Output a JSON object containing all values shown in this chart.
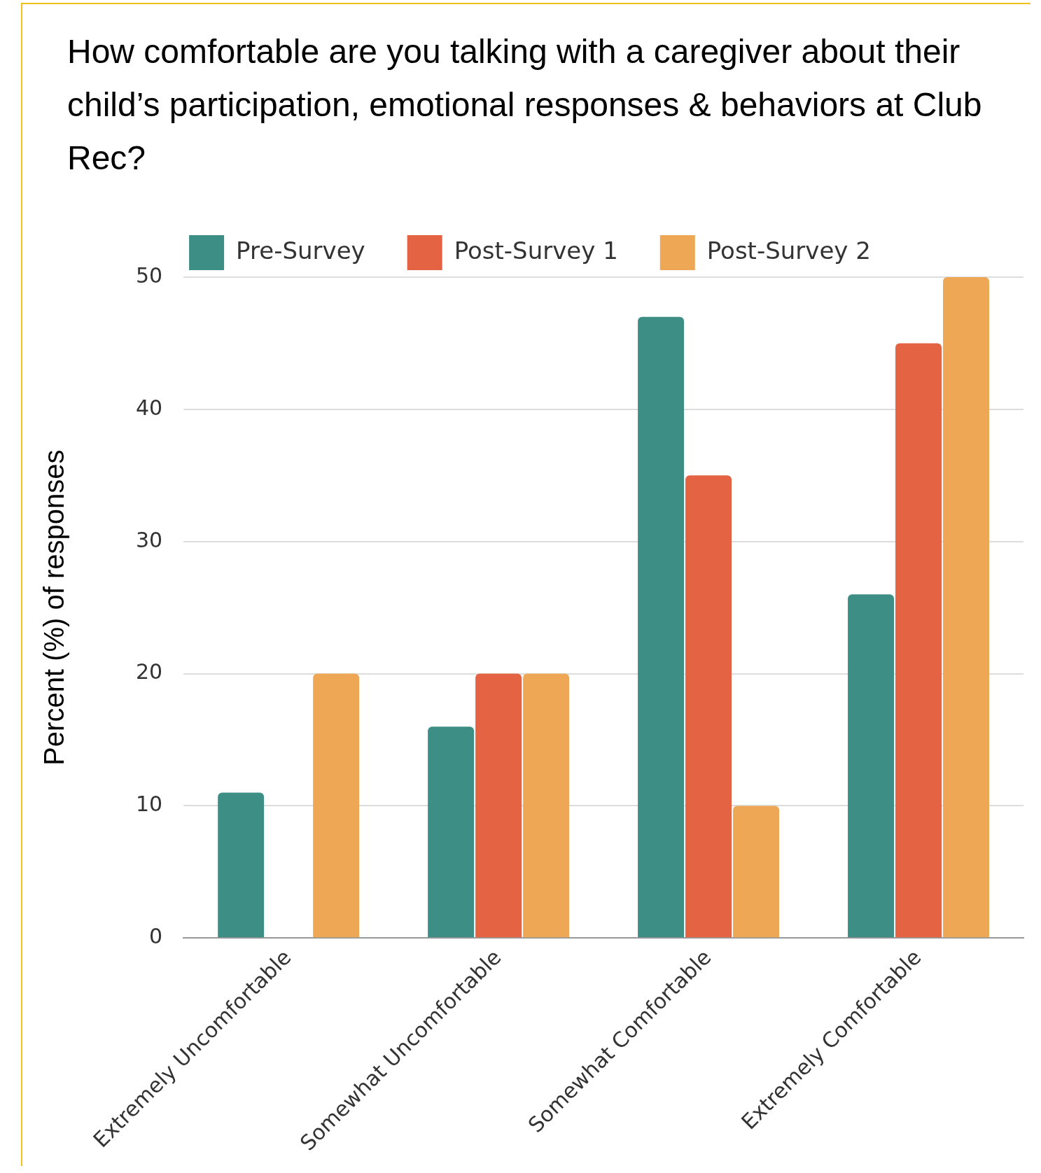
{
  "chart_data": {
    "type": "bar",
    "title": "How comfortable are you talking with a caregiver about their child’s participation, emotional responses & behaviors at Club Rec?",
    "ylabel": "Percent (%) of responses",
    "categories": [
      "Extremely Uncomfortable",
      "Somewhat Uncomfortable",
      "Somewhat Comfortable",
      "Extremely Comfortable"
    ],
    "series": [
      {
        "name": "Pre-Survey",
        "color": "#3d8f85",
        "values": [
          11,
          16,
          47,
          26
        ]
      },
      {
        "name": "Post-Survey 1",
        "color": "#e36343",
        "values": [
          0,
          20,
          35,
          45
        ]
      },
      {
        "name": "Post-Survey 2",
        "color": "#eea755",
        "values": [
          20,
          20,
          10,
          50
        ]
      }
    ],
    "ylim": [
      0,
      50
    ],
    "yticks": [
      0,
      10,
      20,
      30,
      40,
      50
    ],
    "grid": "y",
    "legend": "top"
  }
}
